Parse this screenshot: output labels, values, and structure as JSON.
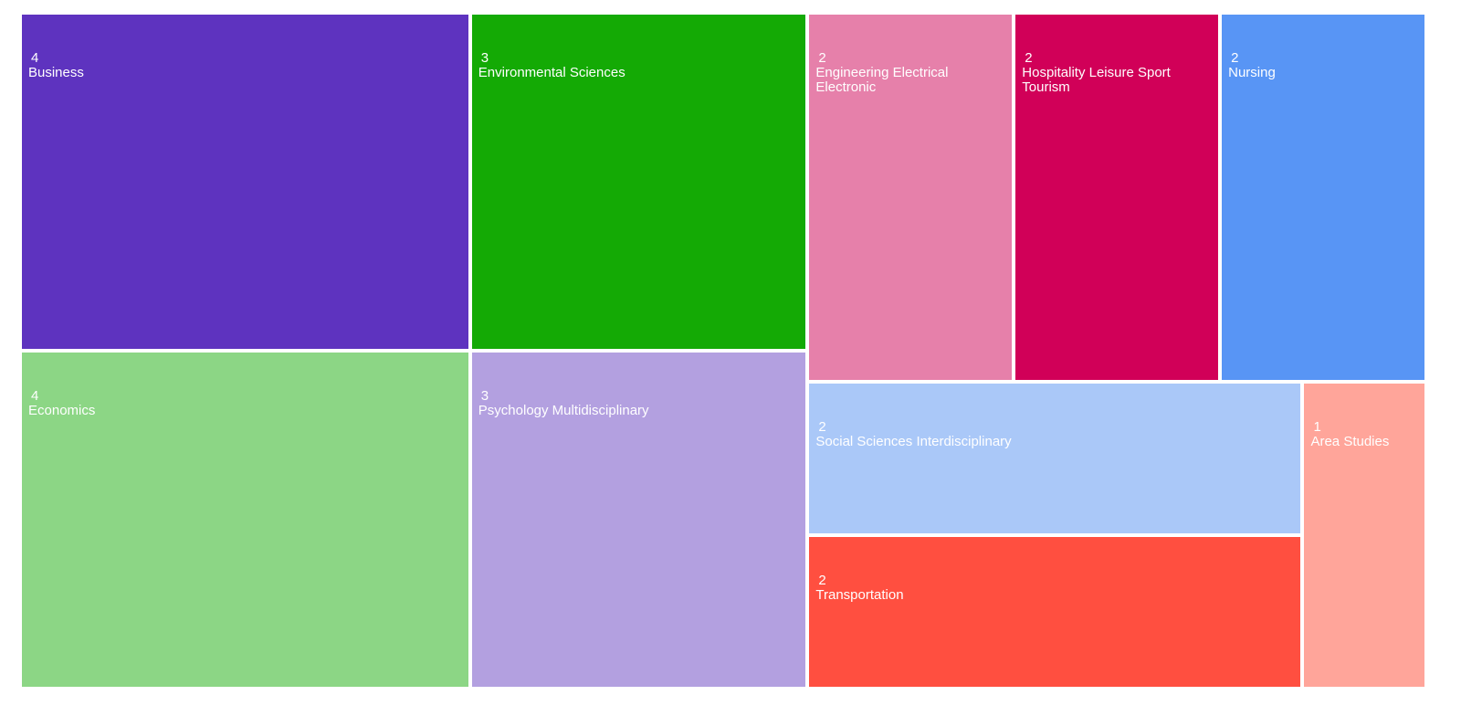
{
  "chart_data": {
    "type": "treemap",
    "categories": [
      "Business",
      "Economics",
      "Environmental Sciences",
      "Psychology Multidisciplinary",
      "Engineering Electrical Electronic",
      "Hospitality Leisure Sport Tourism",
      "Nursing",
      "Social Sciences Interdisciplinary",
      "Transportation",
      "Area Studies"
    ],
    "values": [
      4,
      4,
      3,
      3,
      2,
      2,
      2,
      2,
      2,
      1
    ],
    "colors": [
      "#5e33bf",
      "#8cd685",
      "#14aa05",
      "#b3a0e0",
      "#e680aa",
      "#d10058",
      "#5895f5",
      "#aac8f8",
      "#ff4f40",
      "#ffa59a"
    ]
  }
}
